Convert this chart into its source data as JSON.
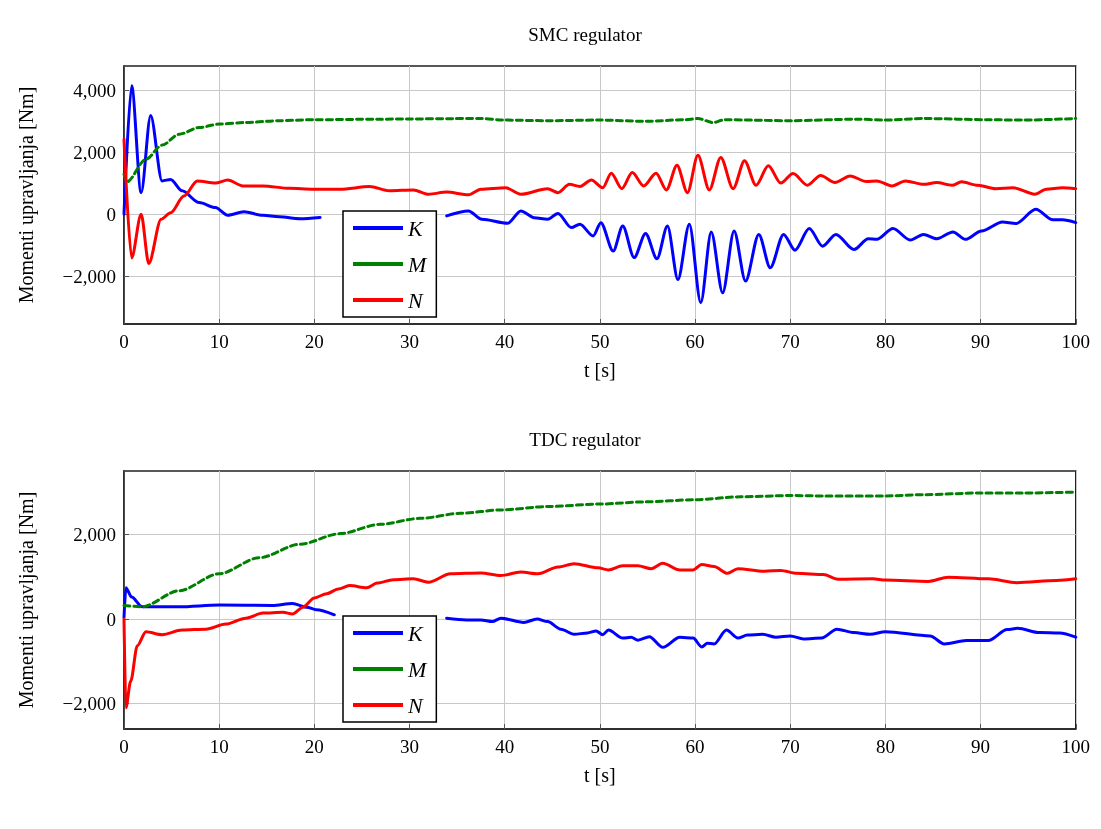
{
  "chart_data": [
    {
      "type": "line",
      "title": "SMC regulator",
      "xlabel": "t [s]",
      "ylabel": "Momenti upravljanja [Nm]",
      "xlim": [
        0,
        100
      ],
      "xticks": [
        0,
        10,
        20,
        30,
        40,
        50,
        60,
        70,
        80,
        90,
        100
      ],
      "ylim": [
        -3550,
        4800
      ],
      "yticks": [
        {
          "value": -2000,
          "label": "−2,000"
        },
        0,
        {
          "value": 2000,
          "label": "2,000"
        },
        {
          "value": 4000,
          "label": "4,000"
        }
      ],
      "grid": true,
      "legend": "bottom left",
      "marker": "none",
      "series": [
        {
          "name": "K",
          "color": "#0000ff",
          "line_style": "solid",
          "x": [
            0,
            0.8,
            1.8,
            2.8,
            4,
            4.9,
            6.1,
            7.9,
            9.6,
            10.9,
            12.6,
            14.6,
            16.3,
            18.5,
            20.6,
            22.3,
            33.3,
            33.9,
            36.2,
            37.6,
            40.3,
            41.7,
            43.1,
            44.5,
            45.6,
            47,
            47.9,
            49.3,
            50.1,
            51.4,
            52.4,
            53.6,
            54.8,
            56,
            57.1,
            58.2,
            59.4,
            60.6,
            61.7,
            62.9,
            64.1,
            65.3,
            66.7,
            67.9,
            69.3,
            70.5,
            72,
            73.4,
            74.8,
            76.7,
            78.2,
            79.1,
            80.8,
            82.6,
            84,
            85.4,
            87.1,
            88.4,
            90.1,
            92.3,
            93.7,
            95.8,
            97.6,
            98.6,
            100
          ],
          "values": [
            0,
            4160,
            700,
            3200,
            1080,
            1130,
            760,
            380,
            220,
            -30,
            80,
            -30,
            -80,
            -140,
            -100,
            null,
            null,
            -50,
            110,
            -160,
            -290,
            110,
            -110,
            -160,
            30,
            -430,
            -320,
            -700,
            -270,
            -1190,
            -380,
            -1400,
            -620,
            -1440,
            -380,
            -2110,
            -320,
            -2860,
            -570,
            -2540,
            -540,
            -2160,
            -650,
            -1730,
            -650,
            -1160,
            -460,
            -1030,
            -650,
            -1140,
            -790,
            -810,
            -460,
            -830,
            -650,
            -790,
            -570,
            -810,
            -540,
            -250,
            -300,
            160,
            -180,
            -180,
            -270
          ]
        },
        {
          "name": "M",
          "color": "#008000",
          "line_style": "dashed",
          "x": [
            0,
            0.3,
            2.3,
            4,
            5.8,
            7.9,
            10,
            12.8,
            16.3,
            19.9,
            26.9,
            37.5,
            39.9,
            44.5,
            50,
            54.7,
            58.9,
            60.3,
            61.9,
            63.1,
            70.1,
            77,
            79.8,
            84,
            91,
            94.4,
            100
          ],
          "values": [
            1300,
            1050,
            1780,
            2240,
            2590,
            2810,
            2920,
            2970,
            3030,
            3060,
            3080,
            3100,
            3050,
            3030,
            3050,
            3010,
            3060,
            3100,
            2970,
            3060,
            3030,
            3080,
            3050,
            3100,
            3060,
            3050,
            3100
          ]
        },
        {
          "name": "N",
          "color": "#ff0000",
          "line_style": "solid",
          "x": [
            0,
            0.8,
            1.8,
            2.6,
            3.9,
            4.9,
            6.3,
            7.7,
            9.6,
            10.9,
            12.5,
            14.6,
            17.4,
            19.9,
            22.7,
            25.8,
            27.9,
            30.4,
            32,
            33.9,
            36.2,
            37.5,
            40.1,
            41.7,
            44.5,
            45.6,
            46.8,
            47.9,
            49.1,
            50.3,
            51.2,
            52.3,
            53.4,
            54.6,
            55.9,
            57,
            58.1,
            59.2,
            60.3,
            61.5,
            62.7,
            64,
            65.2,
            66.4,
            67.7,
            69,
            70.3,
            71.8,
            73.2,
            74.7,
            76.3,
            78,
            79.1,
            80.7,
            82.1,
            84,
            85.4,
            87,
            88,
            89.7,
            91.6,
            93.4,
            95.7,
            96.9,
            98.6,
            100
          ],
          "values": [
            2430,
            -1410,
            0,
            -1590,
            -160,
            50,
            590,
            1080,
            1010,
            1110,
            920,
            920,
            840,
            810,
            810,
            900,
            760,
            790,
            650,
            720,
            630,
            810,
            860,
            650,
            830,
            700,
            970,
            900,
            1110,
            860,
            1330,
            830,
            1350,
            920,
            1330,
            790,
            1590,
            700,
            1910,
            790,
            1840,
            830,
            1730,
            940,
            1570,
            1010,
            1320,
            940,
            1260,
            1030,
            1240,
            1060,
            1080,
            920,
            1080,
            970,
            1030,
            940,
            1050,
            940,
            830,
            860,
            650,
            810,
            860,
            830
          ]
        }
      ]
    },
    {
      "type": "line",
      "title": "TDC regulator",
      "xlabel": "t [s]",
      "ylabel": "Momenti upravljanja [Nm]",
      "xlim": [
        0,
        100
      ],
      "xticks": [
        0,
        10,
        20,
        30,
        40,
        50,
        60,
        70,
        80,
        90,
        100
      ],
      "ylim": [
        -2600,
        3500
      ],
      "yticks": [
        {
          "value": -2000,
          "label": "−2,000"
        },
        0,
        {
          "value": 2000,
          "label": "2,000"
        }
      ],
      "grid": true,
      "legend": "bottom left",
      "marker": "none",
      "series": [
        {
          "name": "K",
          "color": "#0000ff",
          "line_style": "solid",
          "x": [
            0,
            0.2,
            0.8,
            1.9,
            5.8,
            10,
            15.6,
            17.7,
            19.2,
            20.2,
            22.1,
            22.3,
            33.3,
            33.9,
            36,
            37.5,
            38.7,
            39.6,
            42,
            43.4,
            44.5,
            45.9,
            47.3,
            48.7,
            49.6,
            50.3,
            50.9,
            52.4,
            53.3,
            54,
            55.2,
            56.6,
            58.4,
            59.8,
            60.7,
            61.3,
            62,
            63.3,
            64.5,
            65.5,
            67.1,
            68.5,
            70,
            71.4,
            73.3,
            74.9,
            76.7,
            78.4,
            80,
            84.7,
            86.2,
            88.5,
            90.8,
            92.8,
            93.9,
            96.2,
            98.3,
            100
          ],
          "values": [
            40,
            740,
            520,
            290,
            290,
            330,
            320,
            370,
            280,
            220,
            100,
            null,
            null,
            20,
            -20,
            -20,
            -60,
            20,
            -80,
            0,
            -60,
            -240,
            -360,
            -330,
            -280,
            -370,
            -260,
            -450,
            -430,
            -500,
            -420,
            -670,
            -430,
            -450,
            -660,
            -570,
            -590,
            -260,
            -450,
            -380,
            -360,
            -430,
            -400,
            -470,
            -450,
            -240,
            -320,
            -360,
            -300,
            -400,
            -590,
            -510,
            -510,
            -250,
            -220,
            -320,
            -330,
            -430
          ]
        },
        {
          "name": "M",
          "color": "#008000",
          "line_style": "dashed",
          "x": [
            0,
            1.9,
            5.8,
            10,
            14.2,
            18.5,
            22.7,
            26.9,
            31.1,
            35.4,
            39.6,
            44.5,
            50.1,
            54.7,
            59.9,
            64.8,
            70,
            73.5,
            80,
            84,
            89.9,
            94.4,
            100
          ],
          "values": [
            320,
            290,
            670,
            1070,
            1450,
            1770,
            2020,
            2240,
            2380,
            2500,
            2580,
            2660,
            2720,
            2770,
            2820,
            2890,
            2920,
            2910,
            2910,
            2940,
            2980,
            2980,
            3000
          ]
        },
        {
          "name": "N",
          "color": "#ff0000",
          "line_style": "solid",
          "x": [
            0,
            0.2,
            0.7,
            1.4,
            2.3,
            4,
            6.1,
            8.6,
            10.7,
            12.8,
            14.6,
            16.7,
            17.7,
            18.8,
            20,
            21.3,
            22.5,
            23.7,
            25.5,
            26.6,
            28.3,
            30.4,
            32,
            34.3,
            37.5,
            39.6,
            41.7,
            43.5,
            45.6,
            47.3,
            49.8,
            50.9,
            52.4,
            54,
            55.4,
            56.6,
            58.4,
            59.8,
            60.7,
            62,
            63.4,
            64.5,
            67.3,
            69,
            70.7,
            73.5,
            75,
            78.7,
            80,
            84.5,
            86.6,
            90.8,
            93.8,
            98,
            100
          ],
          "values": [
            0,
            -2100,
            -1470,
            -630,
            -300,
            -370,
            -260,
            -240,
            -120,
            20,
            140,
            160,
            120,
            280,
            500,
            600,
            710,
            790,
            740,
            850,
            930,
            950,
            870,
            1070,
            1090,
            1030,
            1110,
            1070,
            1230,
            1310,
            1210,
            1160,
            1260,
            1260,
            1190,
            1320,
            1160,
            1160,
            1290,
            1240,
            1080,
            1190,
            1130,
            1150,
            1080,
            1050,
            940,
            950,
            920,
            890,
            990,
            950,
            860,
            910,
            950
          ]
        }
      ]
    }
  ]
}
